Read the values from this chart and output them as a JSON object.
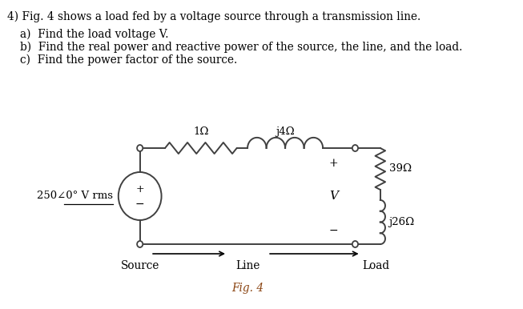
{
  "title_text": "4) Fig. 4 shows a load fed by a voltage source through a transmission line.",
  "question_a": "a)  Find the load voltage V.",
  "question_b": "b)  Find the real power and reactive power of the source, the line, and the load.",
  "question_c": "c)  Find the power factor of the source.",
  "fig_label": "Fig. 4",
  "source_label": "250∠0° V rms",
  "r_line": "1Ω",
  "x_line": "j4Ω",
  "r_load": "39Ω",
  "x_load": "j26Ω",
  "v_label": "V",
  "source_word": "Source",
  "line_word": "Line",
  "load_word": "Load",
  "bg_color": "#ffffff",
  "line_color": "#404040",
  "text_color": "#000000",
  "fig4_color": "#8B4513"
}
